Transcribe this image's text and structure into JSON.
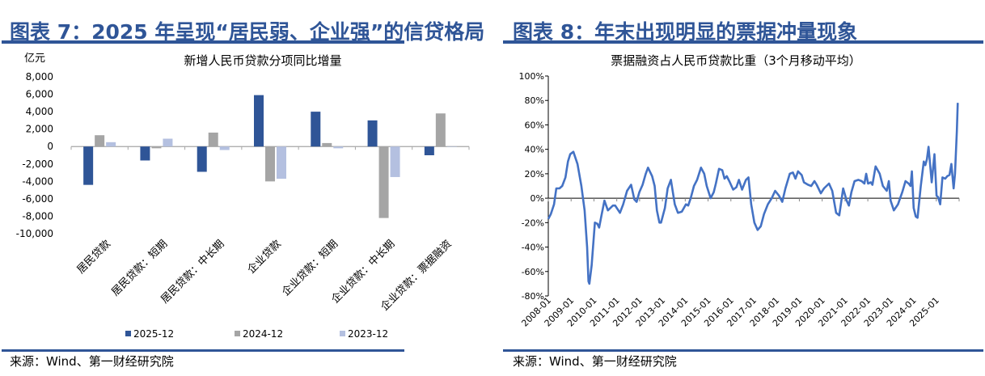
{
  "left": {
    "figure_title": "图表 7：2025 年呈现“居民弱、企业强”的信贷格局",
    "source": "来源：Wind、第一财经研究院"
  },
  "right": {
    "figure_title": "图表 8：年末出现明显的票据冲量现象",
    "source": "来源：Wind、第一财经研究院"
  },
  "chart_data": [
    {
      "type": "bar",
      "title": "新增人民币贷款分项同比增量",
      "ylabel": "亿元",
      "ylim": [
        -10000,
        8000
      ],
      "yticks": [
        8000,
        6000,
        4000,
        2000,
        0,
        -2000,
        -4000,
        -6000,
        -8000,
        -10000
      ],
      "ytick_labels": [
        "8,000",
        "6,000",
        "4,000",
        "2,000",
        "0",
        "-2,000",
        "-4,000",
        "-6,000",
        "-8,000",
        "-10,000"
      ],
      "categories": [
        "居民贷款",
        "居民贷款：短期",
        "居民贷款：中长期",
        "企业贷款",
        "企业贷款：短期",
        "企业贷款：中长期",
        "企业贷款：票据融资"
      ],
      "series": [
        {
          "name": "2025-12",
          "color": "#2f5597",
          "values": [
            -4400,
            -1600,
            -2900,
            5900,
            4000,
            3000,
            -1000
          ]
        },
        {
          "name": "2024-12",
          "color": "#a5a5a5",
          "values": [
            1300,
            -200,
            1600,
            -4000,
            400,
            -8200,
            3800
          ]
        },
        {
          "name": "2023-12",
          "color": "#b4c0e0",
          "values": [
            500,
            900,
            -400,
            -3700,
            -200,
            -3500,
            0
          ]
        }
      ],
      "legend": "bottom"
    },
    {
      "type": "line",
      "title": "票据融资占人民币贷款比重（3个月移动平均）",
      "ylim": [
        -80,
        100
      ],
      "yticks": [
        100,
        80,
        60,
        40,
        20,
        0,
        -20,
        -40,
        -60,
        -80
      ],
      "ytick_labels": [
        "100%",
        "80%",
        "60%",
        "40%",
        "20%",
        "0%",
        "-20%",
        "-40%",
        "-60%",
        "-80%"
      ],
      "xtick_labels": [
        "2008-01",
        "2009-01",
        "2010-01",
        "2011-01",
        "2012-01",
        "2013-01",
        "2014-01",
        "2015-01",
        "2016-01",
        "2017-01",
        "2018-01",
        "2019-01",
        "2020-01",
        "2021-01",
        "2022-01",
        "2023-01",
        "2024-01",
        "2025-01"
      ],
      "x_unit": "years since 2008-01",
      "xlim": [
        0,
        18
      ],
      "color": "#4472c4",
      "points": [
        [
          0,
          -17
        ],
        [
          0.11,
          -13
        ],
        [
          0.25,
          -5
        ],
        [
          0.35,
          8
        ],
        [
          0.49,
          8
        ],
        [
          0.61,
          10
        ],
        [
          0.75,
          17
        ],
        [
          0.86,
          30
        ],
        [
          0.96,
          36
        ],
        [
          1.1,
          38
        ],
        [
          1.28,
          28
        ],
        [
          1.45,
          10
        ],
        [
          1.59,
          -10
        ],
        [
          1.7,
          -40
        ],
        [
          1.76,
          -68
        ],
        [
          1.8,
          -70
        ],
        [
          1.9,
          -55
        ],
        [
          2.04,
          -20
        ],
        [
          2.15,
          -21
        ],
        [
          2.23,
          -24
        ],
        [
          2.32,
          -15
        ],
        [
          2.46,
          -2
        ],
        [
          2.61,
          -10
        ],
        [
          2.83,
          -6
        ],
        [
          2.93,
          -6
        ],
        [
          3.14,
          -12
        ],
        [
          3.28,
          -5
        ],
        [
          3.45,
          6
        ],
        [
          3.63,
          11
        ],
        [
          3.77,
          -1
        ],
        [
          3.87,
          -3
        ],
        [
          3.99,
          5
        ],
        [
          4.13,
          11
        ],
        [
          4.27,
          20
        ],
        [
          4.37,
          25
        ],
        [
          4.55,
          18
        ],
        [
          4.66,
          10
        ],
        [
          4.76,
          -10
        ],
        [
          4.87,
          -20
        ],
        [
          4.94,
          -20
        ],
        [
          5.11,
          -8
        ],
        [
          5.23,
          8
        ],
        [
          5.37,
          15
        ],
        [
          5.54,
          -5
        ],
        [
          5.68,
          -12
        ],
        [
          5.85,
          -11
        ],
        [
          6.03,
          -5
        ],
        [
          6.13,
          -6
        ],
        [
          6.24,
          0
        ],
        [
          6.38,
          10
        ],
        [
          6.52,
          15
        ],
        [
          6.69,
          25
        ],
        [
          6.83,
          20
        ],
        [
          6.94,
          10
        ],
        [
          7.11,
          0
        ],
        [
          7.25,
          5
        ],
        [
          7.34,
          12
        ],
        [
          7.48,
          24
        ],
        [
          7.62,
          23
        ],
        [
          7.72,
          16
        ],
        [
          7.82,
          18
        ],
        [
          7.93,
          14
        ],
        [
          8.1,
          7
        ],
        [
          8.24,
          9
        ],
        [
          8.35,
          15
        ],
        [
          8.49,
          7
        ],
        [
          8.66,
          15
        ],
        [
          8.77,
          17
        ],
        [
          8.89,
          -5
        ],
        [
          9.03,
          -20
        ],
        [
          9.17,
          -26
        ],
        [
          9.31,
          -23
        ],
        [
          9.45,
          -13
        ],
        [
          9.62,
          -5
        ],
        [
          9.79,
          0
        ],
        [
          9.94,
          6
        ],
        [
          10.11,
          2
        ],
        [
          10.25,
          -3
        ],
        [
          10.39,
          8
        ],
        [
          10.58,
          20
        ],
        [
          10.72,
          21
        ],
        [
          10.83,
          16
        ],
        [
          10.94,
          22
        ],
        [
          11.1,
          19
        ],
        [
          11.2,
          13
        ],
        [
          11.38,
          11
        ],
        [
          11.52,
          10
        ],
        [
          11.66,
          14
        ],
        [
          11.76,
          11
        ],
        [
          11.94,
          4
        ],
        [
          12.08,
          8
        ],
        [
          12.3,
          12
        ],
        [
          12.44,
          6
        ],
        [
          12.61,
          -12
        ],
        [
          12.75,
          -14
        ],
        [
          12.92,
          8
        ],
        [
          13.07,
          -2
        ],
        [
          13.17,
          -6
        ],
        [
          13.28,
          5
        ],
        [
          13.42,
          14
        ],
        [
          13.59,
          15
        ],
        [
          13.73,
          14
        ],
        [
          13.85,
          12
        ],
        [
          13.93,
          20
        ],
        [
          14.01,
          12
        ],
        [
          14.13,
          13
        ],
        [
          14.2,
          11
        ],
        [
          14.34,
          26
        ],
        [
          14.52,
          20
        ],
        [
          14.66,
          10
        ],
        [
          14.83,
          6
        ],
        [
          14.92,
          14
        ],
        [
          15.0,
          -2
        ],
        [
          15.14,
          -10
        ],
        [
          15.32,
          -5
        ],
        [
          15.51,
          5
        ],
        [
          15.65,
          14
        ],
        [
          15.79,
          12
        ],
        [
          15.87,
          10
        ],
        [
          15.93,
          22
        ],
        [
          16.01,
          -8
        ],
        [
          16.1,
          -15
        ],
        [
          16.18,
          -16
        ],
        [
          16.32,
          10
        ],
        [
          16.45,
          30
        ],
        [
          16.52,
          27
        ],
        [
          16.59,
          32
        ],
        [
          16.66,
          42
        ],
        [
          16.8,
          13
        ],
        [
          16.92,
          36
        ],
        [
          17.01,
          2
        ],
        [
          17.08,
          1
        ],
        [
          17.17,
          -5
        ],
        [
          17.27,
          17
        ],
        [
          17.39,
          16
        ],
        [
          17.48,
          18
        ],
        [
          17.58,
          19
        ],
        [
          17.66,
          28
        ],
        [
          17.76,
          8
        ],
        [
          17.82,
          20
        ],
        [
          17.9,
          55
        ],
        [
          17.94,
          78
        ]
      ]
    }
  ]
}
